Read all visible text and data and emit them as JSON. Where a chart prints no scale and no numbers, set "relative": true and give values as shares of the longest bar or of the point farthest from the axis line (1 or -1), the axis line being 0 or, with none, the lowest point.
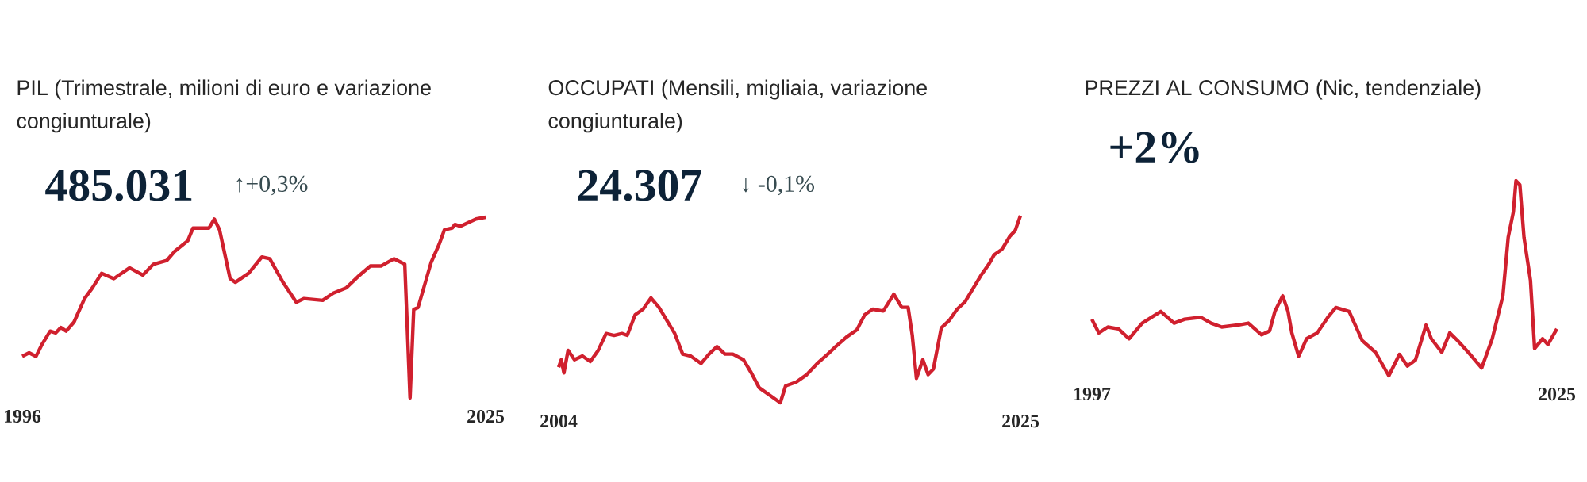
{
  "chart_data": [
    {
      "type": "line",
      "title": "PIL (Trimestrale, milioni di euro e variazione congiunturale)",
      "annotations": [
        "485.031",
        "↑+0,3%"
      ],
      "relative": true,
      "xlim": [
        1996,
        2025
      ],
      "xticks": [
        1996,
        2025
      ],
      "tick_labels": "x",
      "color": "#d0202e",
      "x": [
        1996.0,
        1996.43,
        1996.86,
        1997.26,
        1997.75,
        1998.09,
        1998.42,
        1998.75,
        1999.24,
        1999.9,
        2000.4,
        2000.97,
        2001.73,
        2002.72,
        2003.55,
        2004.21,
        2005.04,
        2005.53,
        2006.36,
        2006.69,
        2007.69,
        2008.02,
        2008.35,
        2009.01,
        2009.34,
        2010.17,
        2011.0,
        2011.49,
        2012.32,
        2013.15,
        2013.64,
        2014.8,
        2015.47,
        2016.29,
        2017.12,
        2017.78,
        2018.45,
        2019.27,
        2019.94,
        2020.27,
        2020.5,
        2020.77,
        2021.59,
        2022.09,
        2022.42,
        2022.91,
        2023.08,
        2023.41,
        2024.4,
        2025.0
      ],
      "values": [
        0.23,
        0.25,
        0.23,
        0.3,
        0.37,
        0.36,
        0.39,
        0.37,
        0.42,
        0.55,
        0.61,
        0.69,
        0.66,
        0.72,
        0.68,
        0.74,
        0.76,
        0.81,
        0.87,
        0.94,
        0.94,
        0.99,
        0.93,
        0.66,
        0.64,
        0.69,
        0.78,
        0.77,
        0.64,
        0.53,
        0.55,
        0.54,
        0.58,
        0.61,
        0.68,
        0.73,
        0.73,
        0.77,
        0.74,
        0,
        0.49,
        0.5,
        0.75,
        0.85,
        0.93,
        0.94,
        0.96,
        0.95,
        0.99,
        1
      ]
    },
    {
      "type": "line",
      "title": "OCCUPATI (Mensili, migliaia, variazione congiunturale)",
      "annotations": [
        "24.307",
        "↓ -0,1%"
      ],
      "relative": true,
      "xlim": [
        2004,
        2025
      ],
      "xticks": [
        2004,
        2025
      ],
      "tick_labels": "x",
      "color": "#d0202e",
      "x": [
        2004.0,
        2004.12,
        2004.24,
        2004.43,
        2004.72,
        2005.08,
        2005.44,
        2005.8,
        2006.16,
        2006.52,
        2006.88,
        2007.12,
        2007.48,
        2007.84,
        2008.2,
        2008.56,
        2008.92,
        2009.28,
        2009.64,
        2010.0,
        2010.48,
        2010.84,
        2011.2,
        2011.56,
        2011.92,
        2012.4,
        2012.76,
        2013.12,
        2013.6,
        2014.08,
        2014.32,
        2014.8,
        2015.28,
        2015.76,
        2016.24,
        2016.6,
        2017.08,
        2017.56,
        2017.92,
        2018.28,
        2018.76,
        2019.24,
        2019.6,
        2019.89,
        2020.08,
        2020.27,
        2020.56,
        2020.8,
        2021.04,
        2021.4,
        2021.76,
        2022.12,
        2022.48,
        2022.84,
        2023.2,
        2023.56,
        2023.8,
        2024.16,
        2024.52,
        2024.76,
        2025.0
      ],
      "values": [
        0.19,
        0.23,
        0.16,
        0.28,
        0.23,
        0.25,
        0.22,
        0.28,
        0.37,
        0.36,
        0.37,
        0.36,
        0.47,
        0.5,
        0.56,
        0.51,
        0.44,
        0.37,
        0.26,
        0.25,
        0.21,
        0.26,
        0.3,
        0.26,
        0.26,
        0.23,
        0.16,
        0.08,
        0.04,
        0,
        0.09,
        0.11,
        0.15,
        0.21,
        0.26,
        0.3,
        0.35,
        0.39,
        0.47,
        0.5,
        0.49,
        0.58,
        0.51,
        0.51,
        0.36,
        0.13,
        0.23,
        0.15,
        0.18,
        0.4,
        0.44,
        0.5,
        0.54,
        0.61,
        0.68,
        0.74,
        0.79,
        0.82,
        0.89,
        0.92,
        1
      ]
    },
    {
      "type": "line",
      "title": "PREZZI AL CONSUMO (Nic, tendenziale)",
      "annotations": [
        "+2%"
      ],
      "relative": true,
      "xlim": [
        1997,
        2025
      ],
      "xticks": [
        1997,
        2025
      ],
      "tick_labels": "x",
      "color": "#d0202e",
      "x": [
        1997.0,
        1997.42,
        1997.96,
        1998.6,
        1999.24,
        2000.03,
        2001.15,
        2001.95,
        2002.59,
        2003.55,
        2004.18,
        2004.82,
        2005.78,
        2006.42,
        2007.22,
        2007.7,
        2008.02,
        2008.49,
        2008.81,
        2009.04,
        2009.45,
        2009.93,
        2010.57,
        2011.21,
        2011.69,
        2012.49,
        2013.28,
        2014.08,
        2014.88,
        2015.52,
        2016.0,
        2016.48,
        2017.12,
        2017.44,
        2018.07,
        2018.55,
        2019.03,
        2019.67,
        2020.47,
        2021.11,
        2021.75,
        2022.07,
        2022.38,
        2022.54,
        2022.77,
        2023.02,
        2023.41,
        2023.66,
        2024.14,
        2024.46,
        2025.0
      ],
      "values": [
        0.29,
        0.22,
        0.25,
        0.24,
        0.19,
        0.27,
        0.33,
        0.27,
        0.29,
        0.3,
        0.27,
        0.25,
        0.26,
        0.27,
        0.21,
        0.23,
        0.33,
        0.41,
        0.33,
        0.22,
        0.1,
        0.19,
        0.22,
        0.3,
        0.35,
        0.33,
        0.18,
        0.12,
        0,
        0.11,
        0.05,
        0.08,
        0.26,
        0.19,
        0.12,
        0.22,
        0.18,
        0.12,
        0.04,
        0.19,
        0.41,
        0.71,
        0.84,
        1,
        0.98,
        0.71,
        0.49,
        0.14,
        0.19,
        0.16,
        0.24
      ]
    }
  ]
}
